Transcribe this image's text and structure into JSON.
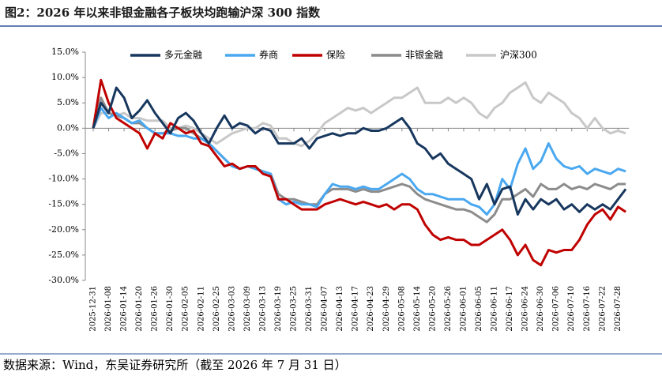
{
  "chart_data": {
    "type": "line",
    "title": "图2：2026 年以来非银金融各子板块均跑输沪深 300 指数",
    "source": "数据来源：Wind，东吴证券研究所（截至 2026 年 7 月 31 日）",
    "categories": [
      "2025-12-31",
      null,
      "2026-01-08",
      null,
      "2026-01-14",
      null,
      "2026-01-20",
      null,
      "2026-01-26",
      null,
      "2026-01-30",
      null,
      "2026-02-05",
      null,
      "2026-02-11",
      null,
      "2026-02-25",
      null,
      "2026-03-03",
      null,
      "2026-03-09",
      null,
      "2026-03-13",
      null,
      "2026-03-19",
      null,
      "2026-03-25",
      null,
      "2026-03-31",
      null,
      "2026-04-07",
      null,
      "2026-04-13",
      null,
      "2026-04-17",
      null,
      "2026-04-23",
      null,
      "2026-04-29",
      null,
      "2026-05-08",
      null,
      "2026-05-14",
      null,
      "2026-05-20",
      null,
      "2026-05-26",
      null,
      "2026-06-01",
      null,
      "2026-06-05",
      null,
      "2026-06-11",
      null,
      "2026-06-17",
      null,
      "2026-06-24",
      null,
      "2026-06-30",
      null,
      "2026-07-06",
      null,
      "2026-07-10",
      null,
      "2026-07-16",
      null,
      "2026-07-22",
      null,
      "2026-07-28",
      null
    ],
    "series": [
      {
        "name": "多元金融",
        "color": "#17375e",
        "values": [
          0,
          5,
          3,
          8,
          6,
          2,
          3.5,
          5.5,
          3,
          1,
          -1,
          2,
          3,
          1.5,
          -1,
          -3,
          0,
          2.5,
          0,
          1,
          0.5,
          -1,
          0,
          -0.5,
          -3,
          -3,
          -3,
          -2,
          -4,
          -2,
          -1.5,
          -1,
          -1.5,
          -1,
          -1,
          0,
          -0.5,
          -0.5,
          0,
          1,
          2,
          0,
          -3,
          -4,
          -6,
          -5,
          -7,
          -8,
          -9,
          -10,
          -14,
          -11,
          -15,
          -12,
          -11.5,
          -17,
          -14,
          -16,
          -14,
          -15,
          -14,
          -16,
          -15,
          -16.5,
          -15,
          -16,
          -15,
          -16,
          -14,
          -12
        ]
      },
      {
        "name": "券商",
        "color": "#4aa8f0",
        "values": [
          0,
          4,
          2,
          3,
          2,
          1,
          1.5,
          0,
          -1,
          -1,
          -1,
          -1.5,
          -1.5,
          -2,
          -2,
          -3,
          -4.5,
          -6,
          -7.5,
          -8,
          -7.5,
          -8,
          -8.5,
          -9,
          -14,
          -15,
          -14.5,
          -15,
          -15,
          -15.5,
          -13,
          -11,
          -11.5,
          -11.5,
          -12,
          -11.5,
          -12,
          -12,
          -11,
          -10,
          -9,
          -10,
          -12,
          -13,
          -13,
          -13.5,
          -14,
          -14,
          -14,
          -15,
          -15.5,
          -17,
          -15,
          -10,
          -12,
          -7,
          -4,
          -8,
          -6.5,
          -3,
          -6,
          -7.5,
          -8,
          -7.5,
          -9,
          -8,
          -8.5,
          -9,
          -8,
          -8.5
        ]
      },
      {
        "name": "保险",
        "color": "#c00000",
        "values": [
          0,
          9.5,
          5,
          2,
          1,
          0,
          -1,
          -4,
          -1,
          -2,
          1,
          0,
          -1,
          -0.5,
          -3,
          -3.5,
          -5.5,
          -7.5,
          -7,
          -8,
          -7.5,
          -7.5,
          -9,
          -9.5,
          -14,
          -14,
          -15,
          -16,
          -16,
          -16,
          -15,
          -14.5,
          -14,
          -14.5,
          -15,
          -14.5,
          -15,
          -15.5,
          -15,
          -16,
          -15,
          -15,
          -16,
          -19,
          -21,
          -22,
          -21.5,
          -22,
          -22,
          -23,
          -23,
          -22,
          -21,
          -20,
          -22,
          -25,
          -23,
          -26,
          -27,
          -24,
          -24.5,
          -24,
          -24,
          -22,
          -19,
          -17,
          -16,
          -18,
          -15.5,
          -16.5
        ]
      },
      {
        "name": "非银金融",
        "color": "#8c8c8c",
        "values": [
          0,
          6,
          3,
          2.5,
          2,
          1,
          1,
          0,
          -1,
          -1,
          -0.5,
          0,
          0,
          -1,
          -2,
          -3,
          -4.5,
          -6,
          -7.5,
          -8,
          -7.5,
          -8,
          -8.5,
          -9,
          -13,
          -14,
          -14,
          -14.5,
          -15,
          -15,
          -13,
          -12,
          -12,
          -12,
          -12.5,
          -12,
          -12.5,
          -12.5,
          -12,
          -11.5,
          -11,
          -11.5,
          -13,
          -14,
          -14.5,
          -15,
          -15.5,
          -16,
          -16,
          -16.5,
          -17.5,
          -18.5,
          -17,
          -14,
          -14,
          -13,
          -12,
          -13.5,
          -11,
          -12,
          -12,
          -11,
          -12,
          -11.5,
          -12,
          -11,
          -11.5,
          -12,
          -11,
          -11
        ]
      },
      {
        "name": "沪深300",
        "color": "#c8c8c8",
        "values": [
          0,
          3,
          3,
          2.5,
          3,
          2,
          2,
          1.5,
          1.5,
          1.5,
          0,
          0,
          0.5,
          0,
          -1,
          -2,
          -3,
          -2,
          -1,
          -0.5,
          0,
          0,
          1,
          0.5,
          -2,
          -2,
          -3,
          -3.5,
          -2.5,
          -1,
          1,
          2,
          3,
          4,
          3.5,
          4,
          3,
          4,
          5,
          6,
          6,
          7,
          8,
          5,
          5,
          5,
          6,
          5,
          6,
          5,
          3,
          2,
          4,
          5,
          7,
          8,
          9,
          6,
          5,
          7,
          6,
          5,
          3,
          2,
          0,
          2,
          0,
          -1,
          -0.5,
          -1
        ]
      }
    ],
    "ylim": [
      -30,
      15
    ],
    "yticks": [
      {
        "value": -30,
        "label": "-30.0%"
      },
      {
        "value": -25,
        "label": "-25.0%"
      },
      {
        "value": -20,
        "label": "-20.0%"
      },
      {
        "value": -15,
        "label": "-15.0%"
      },
      {
        "value": -10,
        "label": "-10.0%"
      },
      {
        "value": -5,
        "label": "-5.0%"
      },
      {
        "value": 0,
        "label": "0.0%"
      },
      {
        "value": 5,
        "label": "5.0%"
      },
      {
        "value": 10,
        "label": "10.0%"
      },
      {
        "value": 15,
        "label": "15.0%"
      }
    ],
    "legend": "top"
  }
}
